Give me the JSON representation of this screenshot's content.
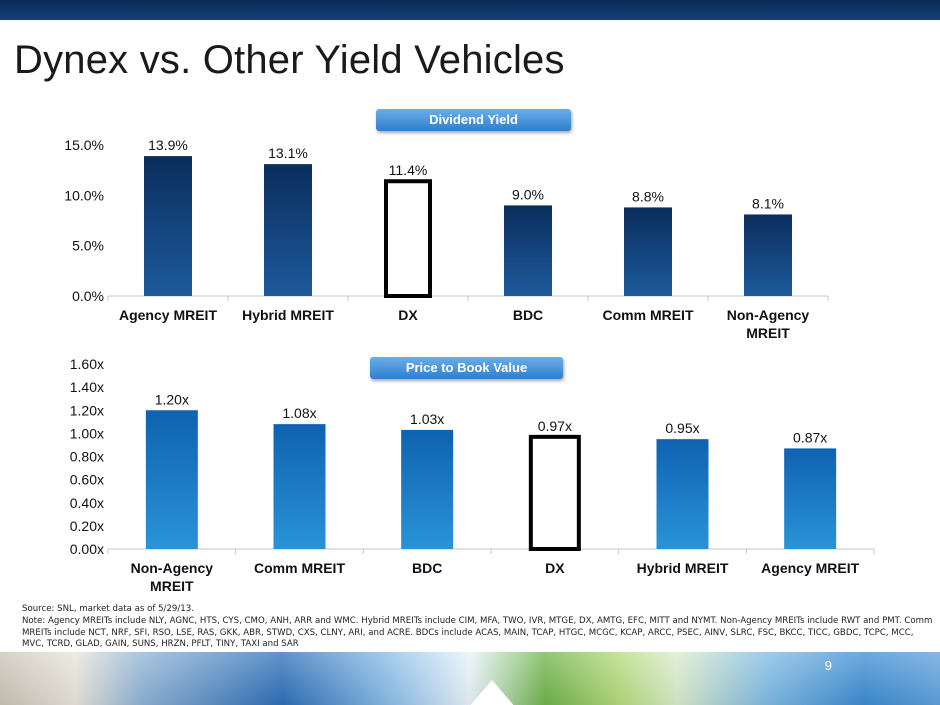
{
  "slide": {
    "title": "Dynex vs. Other Yield Vehicles",
    "page_number": "9",
    "footnote_source": "Source: SNL, market data as of 5/29/13.",
    "footnote_note": "Note: Agency MREITs include NLY, AGNC, HTS, CYS, CMO, ANH, ARR and WMC. Hybrid MREITs include CIM, MFA, TWO, IVR, MTGE, DX, AMTG, EFC, MITT and NYMT. Non-Agency MREITs include RWT and PMT. Comm MREITs include NCT, NRF, SFI, RSO, LSE, RAS, GKK, ABR, STWD, CXS, CLNY, ARI, and ACRE. BDCs include ACAS, MAIN, TCAP, HTGC, MCGC, KCAP, ARCC, PSEC, AINV, SLRC, FSC, BKCC, TICC, GBDC, TCPC, MCC, MVC, TCRD, GLAD, GAIN, SUNS, HRZN, PFLT, TINY, TAXI and SAR"
  },
  "chart_data": [
    {
      "type": "bar",
      "title": "Dividend Yield",
      "categories": [
        "Agency MREIT",
        "Hybrid MREIT",
        "DX",
        "BDC",
        "Comm MREIT",
        "Non-Agency MREIT"
      ],
      "values": [
        13.9,
        13.1,
        11.4,
        9.0,
        8.8,
        8.1
      ],
      "data_labels": [
        "13.9%",
        "13.1%",
        "11.4%",
        "9.0%",
        "8.8%",
        "8.1%"
      ],
      "highlight_category": "DX",
      "ylim": [
        0,
        15
      ],
      "yticks": [
        0,
        5,
        10,
        15
      ],
      "ytick_labels": [
        "0.0%",
        "5.0%",
        "10.0%",
        "15.0%"
      ],
      "grid": false,
      "colors": {
        "bar_top": "#0b2d5c",
        "bar_bottom": "#1d5a9c",
        "highlight_outline": "#000000"
      }
    },
    {
      "type": "bar",
      "title": "Price to Book Value",
      "categories": [
        "Non-Agency MREIT",
        "Comm MREIT",
        "BDC",
        "DX",
        "Hybrid MREIT",
        "Agency MREIT"
      ],
      "values": [
        1.2,
        1.08,
        1.03,
        0.97,
        0.95,
        0.87
      ],
      "data_labels": [
        "1.20x",
        "1.08x",
        "1.03x",
        "0.97x",
        "0.95x",
        "0.87x"
      ],
      "highlight_category": "DX",
      "ylim": [
        0,
        1.6
      ],
      "yticks": [
        0,
        0.2,
        0.4,
        0.6,
        0.8,
        1.0,
        1.2,
        1.4,
        1.6
      ],
      "ytick_labels": [
        "0.00x",
        "0.20x",
        "0.40x",
        "0.60x",
        "0.80x",
        "1.00x",
        "1.20x",
        "1.40x",
        "1.60x"
      ],
      "grid": false,
      "colors": {
        "bar_top": "#0f62b0",
        "bar_bottom": "#2a93d8",
        "highlight_outline": "#000000"
      }
    }
  ]
}
